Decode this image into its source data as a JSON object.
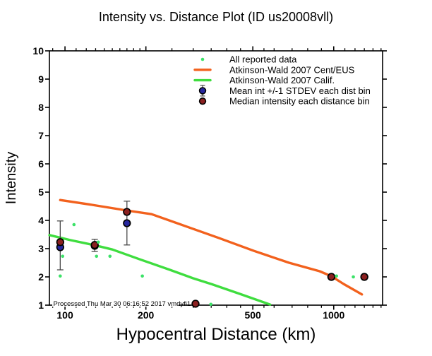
{
  "colors": {
    "background": "#FFFFFF",
    "frame": "#000000",
    "ceus_curve": "#F2611D",
    "calif_curve": "#3FDD3F",
    "reported_dot": "#3CE268",
    "mean_marker": "#26269E",
    "median_marker": "#8B2020",
    "error_bar": "#4A4A4A"
  },
  "chart_data": {
    "type": "scatter",
    "title": "Intensity vs. Distance Plot (ID us20008vll)",
    "xlabel": "Hypocentral Distance (km)",
    "ylabel": "Intensity",
    "footer_note": "Processed Thu Mar 30 06:16:52 2017 vmdyfi1",
    "x_scale": "log",
    "grid": "off",
    "legend_position": "top-center-inside",
    "x_range_km": [
      87.5,
      1520
    ],
    "y_range": [
      1,
      10
    ],
    "x_major_ticks": [
      100,
      200,
      500,
      1000
    ],
    "x_minor_ticks": [
      90,
      110,
      120,
      130,
      140,
      150,
      160,
      170,
      180,
      190,
      250,
      300,
      350,
      400,
      450,
      550,
      600,
      700,
      800,
      900,
      1100,
      1200,
      1300,
      1400,
      1500
    ],
    "y_major_ticks": [
      1,
      2,
      3,
      4,
      5,
      6,
      7,
      8,
      9,
      10
    ],
    "legend": [
      {
        "label": "All reported data",
        "marker": "dot",
        "color_key": "reported_dot"
      },
      {
        "label": "Atkinson-Wald 2007 Cent/EUS",
        "marker": "line",
        "color_key": "ceus_curve"
      },
      {
        "label": "Atkinson-Wald 2007 Calif.",
        "marker": "line",
        "color_key": "calif_curve"
      },
      {
        "label": "Mean int +/-1 STDEV each dist bin",
        "marker": "circle-errorbar",
        "color_key": "mean_marker"
      },
      {
        "label": "Median intensity each distance bin",
        "marker": "circle",
        "color_key": "median_marker"
      }
    ],
    "series": {
      "all_reported_data": {
        "label": "All reported data",
        "points_km_intensity": [
          [
            108,
            3.85
          ],
          [
            98,
            2.73
          ],
          [
            96,
            2.03
          ],
          [
            131,
            2.73
          ],
          [
            133,
            3.23
          ],
          [
            147,
            2.73
          ],
          [
            194,
            2.03
          ],
          [
            349,
            1.03
          ],
          [
            1024,
            2.03
          ],
          [
            1183,
            2.0
          ]
        ]
      },
      "atkinson_wald_2007_cent_eus": {
        "label": "Atkinson-Wald 2007 Cent/EUS",
        "curve_km_intensity": [
          [
            96,
            4.72
          ],
          [
            126,
            4.55
          ],
          [
            170,
            4.35
          ],
          [
            210,
            4.22
          ],
          [
            276,
            3.82
          ],
          [
            373,
            3.38
          ],
          [
            505,
            2.92
          ],
          [
            682,
            2.5
          ],
          [
            886,
            2.2
          ],
          [
            982,
            2.02
          ],
          [
            1088,
            1.75
          ],
          [
            1273,
            1.38
          ]
        ]
      },
      "atkinson_wald_2007_calif": {
        "label": "Atkinson-Wald 2007 Calif.",
        "curve_km_intensity": [
          [
            87.5,
            3.48
          ],
          [
            105,
            3.3
          ],
          [
            129,
            3.12
          ],
          [
            150,
            2.97
          ],
          [
            190,
            2.62
          ],
          [
            244,
            2.26
          ],
          [
            300,
            1.95
          ],
          [
            352,
            1.74
          ],
          [
            447,
            1.4
          ],
          [
            580,
            1.02
          ]
        ]
      },
      "mean_bins": {
        "label": "Mean int +/-1 STDEV each dist bin",
        "points": [
          {
            "km": 96,
            "intensity": 3.05,
            "lo": 2.25,
            "hi": 3.98
          },
          {
            "km": 129,
            "intensity": 3.1,
            "lo": 2.9,
            "hi": 3.33
          },
          {
            "km": 170,
            "intensity": 3.9,
            "lo": 3.13,
            "hi": 4.68
          },
          {
            "km": 980,
            "intensity": 2.0,
            "lo": 2.0,
            "hi": 2.0
          },
          {
            "km": 1300,
            "intensity": 2.0,
            "lo": 2.0,
            "hi": 2.0
          }
        ]
      },
      "median_bins": {
        "label": "Median intensity each distance bin",
        "points_km_intensity": [
          [
            96,
            3.23
          ],
          [
            129,
            3.13
          ],
          [
            170,
            4.3
          ],
          [
            306,
            1.05
          ],
          [
            980,
            2.0
          ],
          [
            1300,
            2.0
          ]
        ]
      }
    }
  }
}
